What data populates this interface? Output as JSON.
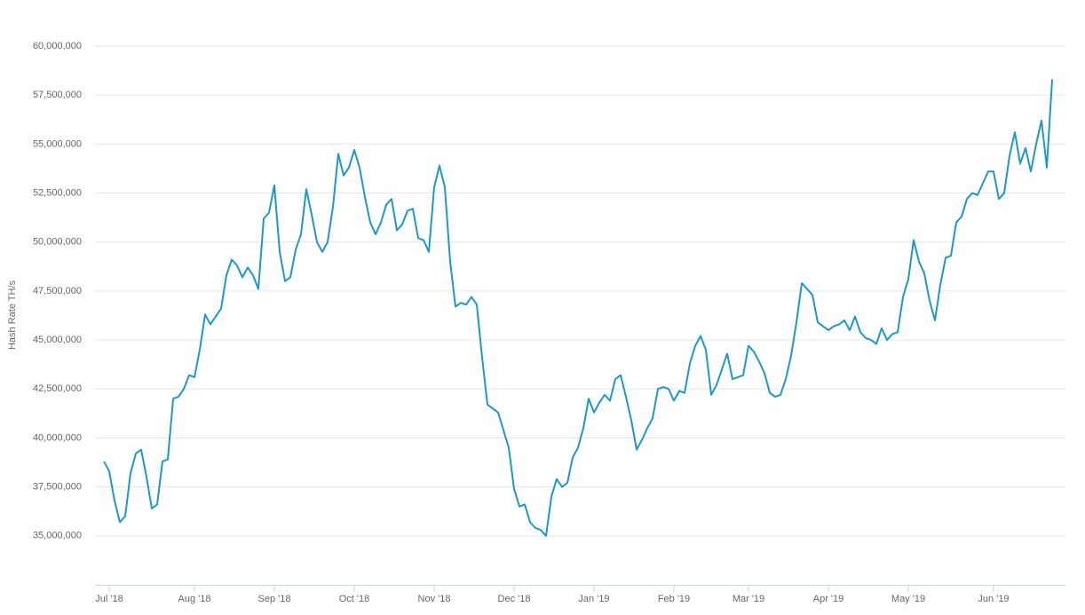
{
  "chart_data": {
    "type": "line",
    "y_label": "Hash Rate TH/s",
    "color": "#1a9ac9",
    "grid": true,
    "ylim": [
      32500000,
      60000000
    ],
    "yticks": [
      {
        "value": 35000000,
        "label": "35,000,000"
      },
      {
        "value": 37500000,
        "label": "37,500,000"
      },
      {
        "value": 40000000,
        "label": "40,000,000"
      },
      {
        "value": 42500000,
        "label": "42,500,000"
      },
      {
        "value": 45000000,
        "label": "45,000,000"
      },
      {
        "value": 47500000,
        "label": "47,500,000"
      },
      {
        "value": 50000000,
        "label": "50,000,000"
      },
      {
        "value": 52500000,
        "label": "52,500,000"
      },
      {
        "value": 55000000,
        "label": "55,000,000"
      },
      {
        "value": 57500000,
        "label": "57,500,000"
      },
      {
        "value": 60000000,
        "label": "60,000,000"
      }
    ],
    "categories": [
      null,
      "Jul '18",
      null,
      null,
      null,
      null,
      null,
      null,
      null,
      null,
      null,
      null,
      null,
      null,
      null,
      null,
      null,
      "Aug '18",
      null,
      null,
      null,
      null,
      null,
      null,
      null,
      null,
      null,
      null,
      null,
      null,
      null,
      null,
      "Sep '18",
      null,
      null,
      null,
      null,
      null,
      null,
      null,
      null,
      null,
      null,
      null,
      null,
      null,
      null,
      "Oct '18",
      null,
      null,
      null,
      null,
      null,
      null,
      null,
      null,
      null,
      null,
      null,
      null,
      null,
      null,
      "Nov '18",
      null,
      null,
      null,
      null,
      null,
      null,
      null,
      null,
      null,
      null,
      null,
      null,
      null,
      null,
      "Dec '18",
      null,
      null,
      null,
      null,
      null,
      null,
      null,
      null,
      null,
      null,
      null,
      null,
      null,
      null,
      "Jan '19",
      null,
      null,
      null,
      null,
      null,
      null,
      null,
      null,
      null,
      null,
      null,
      null,
      null,
      null,
      "Feb '19",
      null,
      null,
      null,
      null,
      null,
      null,
      null,
      null,
      null,
      null,
      null,
      null,
      null,
      "Mar '19",
      null,
      null,
      null,
      null,
      null,
      null,
      null,
      null,
      null,
      null,
      null,
      null,
      null,
      null,
      "Apr '19",
      null,
      null,
      null,
      null,
      null,
      null,
      null,
      null,
      null,
      null,
      null,
      null,
      null,
      null,
      "May '19",
      null,
      null,
      null,
      null,
      null,
      null,
      null,
      null,
      null,
      null,
      null,
      null,
      null,
      null,
      null,
      "Jun '19",
      null,
      null,
      null,
      null,
      null,
      null,
      null,
      null,
      null,
      null,
      null
    ],
    "values": [
      38800000,
      38300000,
      36800000,
      35700000,
      36000000,
      38200000,
      39200000,
      39400000,
      38000000,
      36400000,
      36600000,
      38800000,
      38900000,
      42000000,
      42100000,
      42500000,
      43200000,
      43100000,
      44500000,
      46300000,
      45800000,
      46200000,
      46600000,
      48300000,
      49100000,
      48800000,
      48200000,
      48700000,
      48300000,
      47600000,
      51200000,
      51500000,
      52900000,
      49500000,
      48000000,
      48200000,
      49600000,
      50400000,
      52700000,
      51400000,
      50000000,
      49500000,
      50000000,
      51800000,
      54500000,
      53400000,
      53800000,
      54700000,
      53800000,
      52300000,
      51000000,
      50400000,
      51000000,
      51900000,
      52200000,
      50600000,
      50900000,
      51600000,
      51700000,
      50200000,
      50100000,
      49500000,
      52800000,
      53900000,
      52800000,
      49000000,
      46700000,
      46900000,
      46800000,
      47200000,
      46800000,
      44100000,
      41700000,
      41500000,
      41300000,
      40400000,
      39500000,
      37400000,
      36500000,
      36600000,
      35700000,
      35400000,
      35300000,
      35000000,
      37000000,
      37900000,
      37500000,
      37700000,
      39000000,
      39500000,
      40500000,
      42000000,
      41300000,
      41800000,
      42200000,
      41900000,
      43000000,
      43200000,
      42100000,
      40900000,
      39400000,
      39900000,
      40500000,
      41000000,
      42500000,
      42600000,
      42500000,
      41900000,
      42400000,
      42300000,
      43800000,
      44700000,
      45200000,
      44500000,
      42200000,
      42700000,
      43500000,
      44300000,
      43000000,
      43100000,
      43200000,
      44700000,
      44400000,
      43900000,
      43300000,
      42300000,
      42100000,
      42200000,
      43000000,
      44200000,
      45900000,
      47900000,
      47600000,
      47300000,
      45900000,
      45700000,
      45500000,
      45700000,
      45800000,
      46000000,
      45500000,
      46200000,
      45400000,
      45100000,
      45000000,
      44800000,
      45600000,
      45000000,
      45300000,
      45400000,
      47200000,
      48100000,
      50100000,
      49000000,
      48400000,
      47000000,
      46000000,
      47800000,
      49200000,
      49300000,
      51000000,
      51300000,
      52200000,
      52500000,
      52400000,
      53000000,
      53600000,
      53600000,
      52200000,
      52500000,
      54400000,
      55600000,
      54000000,
      54800000,
      53600000,
      55000000,
      56200000,
      53800000,
      58300000
    ]
  }
}
